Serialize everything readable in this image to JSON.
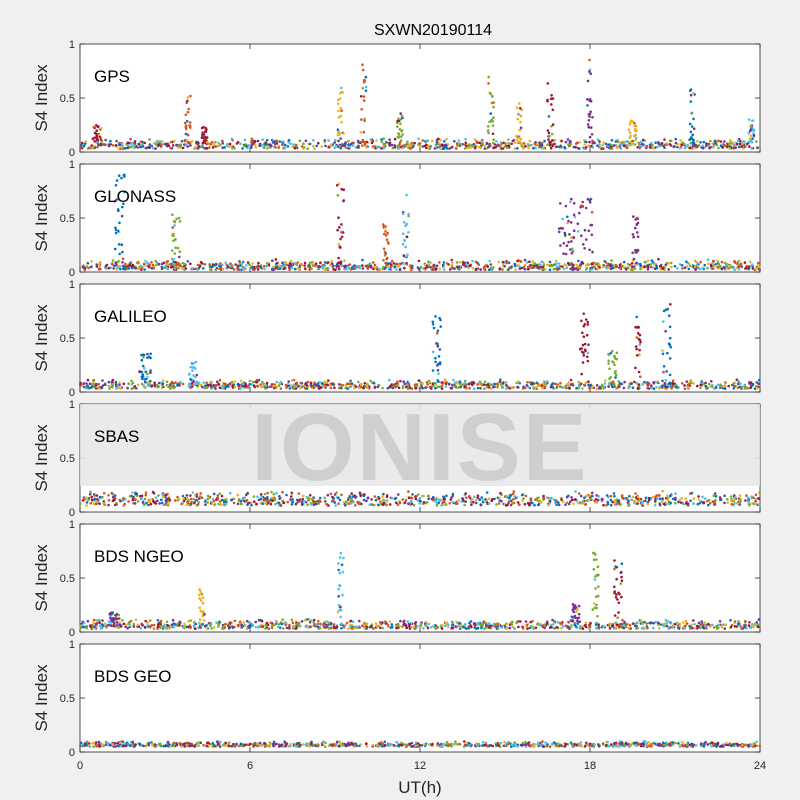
{
  "chart_data": {
    "type": "scatter",
    "title": "SXWN20190114",
    "xlabel": "UT(h)",
    "ylabel": "S4 Index",
    "xlim": [
      0,
      24
    ],
    "ylim": [
      0,
      1
    ],
    "xticks": [
      0,
      6,
      12,
      18,
      24
    ],
    "yticks": [
      0,
      0.5,
      1
    ],
    "ytick_labels": [
      "0",
      "0.5",
      "1"
    ],
    "series_colors": [
      "#0072bd",
      "#d95319",
      "#edb120",
      "#7e2f8e",
      "#77ac30",
      "#4dbeee",
      "#a2142f"
    ],
    "watermark": "IONISE",
    "panels": [
      {
        "name": "GPS",
        "baseline": [
          0.03,
          0.13
        ],
        "bursts": [
          {
            "t": 0.6,
            "w": 0.3,
            "peak": 0.25
          },
          {
            "t": 3.8,
            "w": 0.2,
            "peak": 0.55
          },
          {
            "t": 4.4,
            "w": 0.2,
            "peak": 0.25
          },
          {
            "t": 9.2,
            "w": 0.2,
            "peak": 0.6
          },
          {
            "t": 10.0,
            "w": 0.2,
            "peak": 0.82
          },
          {
            "t": 11.3,
            "w": 0.2,
            "peak": 0.38
          },
          {
            "t": 14.5,
            "w": 0.2,
            "peak": 0.76
          },
          {
            "t": 15.5,
            "w": 0.2,
            "peak": 0.45
          },
          {
            "t": 16.6,
            "w": 0.2,
            "peak": 0.65
          },
          {
            "t": 18.0,
            "w": 0.2,
            "peak": 0.9
          },
          {
            "t": 19.5,
            "w": 0.3,
            "peak": 0.3
          },
          {
            "t": 21.6,
            "w": 0.2,
            "peak": 0.6
          },
          {
            "t": 23.7,
            "w": 0.2,
            "peak": 0.3
          }
        ]
      },
      {
        "name": "GLONASS",
        "baseline": [
          0.02,
          0.12
        ],
        "bursts": [
          {
            "t": 1.4,
            "w": 0.35,
            "peak": 0.9
          },
          {
            "t": 3.4,
            "w": 0.3,
            "peak": 0.55
          },
          {
            "t": 9.2,
            "w": 0.25,
            "peak": 0.82
          },
          {
            "t": 10.8,
            "w": 0.2,
            "peak": 0.45
          },
          {
            "t": 11.5,
            "w": 0.2,
            "peak": 0.72
          },
          {
            "t": 17.5,
            "w": 1.2,
            "peak": 0.68
          },
          {
            "t": 19.6,
            "w": 0.2,
            "peak": 0.55
          }
        ]
      },
      {
        "name": "GALILEO",
        "baseline": [
          0.03,
          0.12
        ],
        "bursts": [
          {
            "t": 2.3,
            "w": 0.4,
            "peak": 0.38
          },
          {
            "t": 4.0,
            "w": 0.3,
            "peak": 0.3
          },
          {
            "t": 12.6,
            "w": 0.3,
            "peak": 0.72
          },
          {
            "t": 17.8,
            "w": 0.3,
            "peak": 0.75
          },
          {
            "t": 18.8,
            "w": 0.3,
            "peak": 0.4
          },
          {
            "t": 19.7,
            "w": 0.2,
            "peak": 0.7
          },
          {
            "t": 20.7,
            "w": 0.3,
            "peak": 0.82
          }
        ]
      },
      {
        "name": "SBAS",
        "baseline": [
          0.06,
          0.2
        ],
        "bursts": []
      },
      {
        "name": "BDS NGEO",
        "baseline": [
          0.03,
          0.12
        ],
        "bursts": [
          {
            "t": 1.2,
            "w": 0.4,
            "peak": 0.18
          },
          {
            "t": 4.3,
            "w": 0.2,
            "peak": 0.4
          },
          {
            "t": 9.2,
            "w": 0.2,
            "peak": 0.82
          },
          {
            "t": 17.5,
            "w": 0.3,
            "peak": 0.28
          },
          {
            "t": 18.2,
            "w": 0.2,
            "peak": 0.75
          },
          {
            "t": 19.0,
            "w": 0.3,
            "peak": 0.72
          }
        ]
      },
      {
        "name": "BDS GEO",
        "baseline": [
          0.05,
          0.1
        ],
        "bursts": []
      }
    ]
  }
}
